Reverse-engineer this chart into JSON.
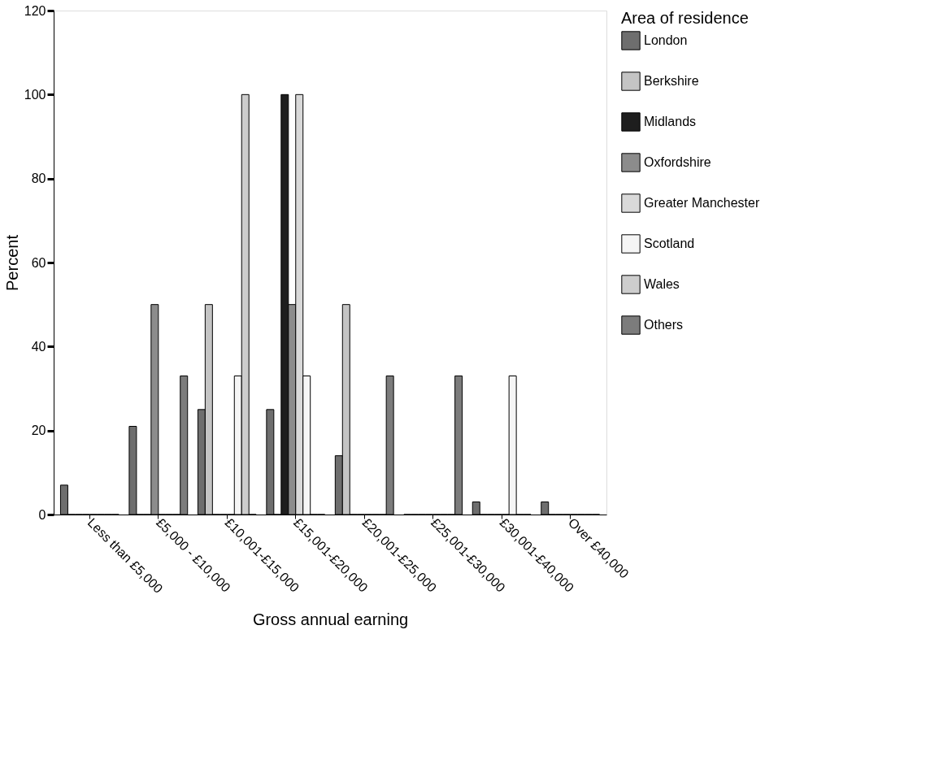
{
  "chart_data": {
    "type": "bar",
    "xlabel": "Gross annual earning",
    "ylabel": "Percent",
    "legend_title": "Area of residence",
    "categories": [
      "Less than £5,000",
      "£5,000 - £10,000",
      "£10,001-£15,000",
      "£15,001-£20,000",
      "£20,001-£25,000",
      "£25,001-£30,000",
      "£30,001-£40,000",
      "Over £40,000"
    ],
    "series": [
      {
        "name": "London",
        "color": "#6e6e6e",
        "values": [
          7,
          21,
          25,
          25,
          14,
          0,
          3,
          3
        ]
      },
      {
        "name": "Berkshire",
        "color": "#c4c4c4",
        "values": [
          0,
          0,
          50,
          0,
          50,
          0,
          0,
          0
        ]
      },
      {
        "name": "Midlands",
        "color": "#1e1e1e",
        "values": [
          0,
          0,
          0,
          100,
          0,
          0,
          0,
          0
        ]
      },
      {
        "name": "Oxfordshire",
        "color": "#8c8c8c",
        "values": [
          0,
          50,
          0,
          50,
          0,
          0,
          0,
          0
        ]
      },
      {
        "name": "Greater Manchester",
        "color": "#d9d9d9",
        "values": [
          0,
          0,
          0,
          100,
          0,
          0,
          0,
          0
        ]
      },
      {
        "name": "Scotland",
        "color": "#f5f5f5",
        "values": [
          0,
          0,
          33,
          33,
          0,
          0,
          33,
          0
        ]
      },
      {
        "name": "Wales",
        "color": "#cdcdcd",
        "values": [
          0,
          0,
          100,
          0,
          0,
          0,
          0,
          0
        ]
      },
      {
        "name": "Others",
        "color": "#7c7c7c",
        "values": [
          0,
          33,
          0,
          0,
          33,
          33,
          0,
          0
        ]
      }
    ],
    "ylim": [
      0,
      120
    ],
    "yticks": [
      0,
      20,
      40,
      60,
      80,
      100,
      120
    ],
    "grid": false,
    "legend": "right"
  }
}
